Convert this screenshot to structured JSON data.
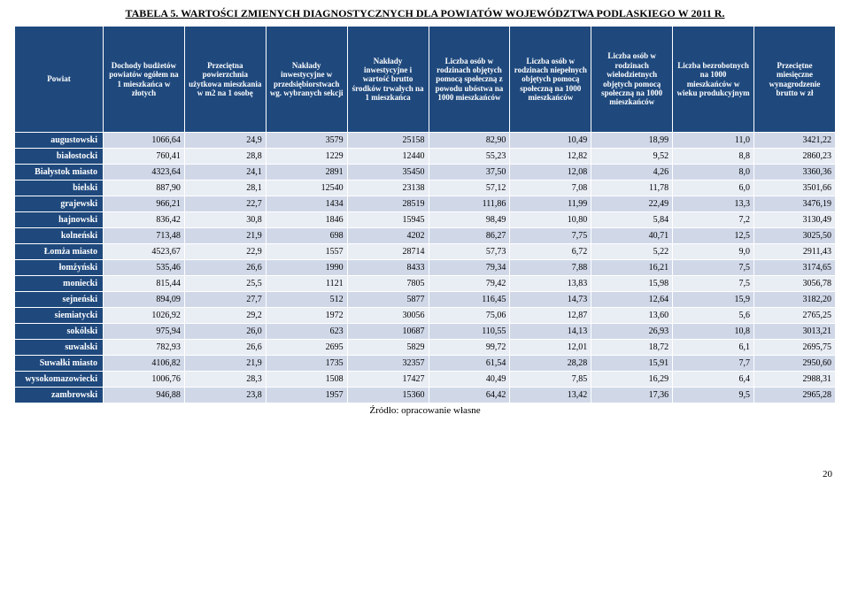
{
  "title": "TABELA 5. WARTOŚCI ZMIENYCH DIAGNOSTYCZNYCH DLA POWIATÓW WOJEWÓDZTWA PODLASKIEGO W 2011 R.",
  "source_note": "Źródło: opracowanie własne",
  "page_number": "20",
  "header_bg": "#1f497d",
  "header_fg": "#ffffff",
  "row_odd_bg": "#d0d8e8",
  "row_even_bg": "#e9edf4",
  "columns": [
    "Powiat",
    "Dochody budżetów powiatów ogółem na 1 mieszkańca w złotych",
    "Przeciętna powierzchnia użytkowa mieszkania w m2 na 1 osobę",
    "Nakłady inwestycyjne w przedsiębiorstwach wg. wybranych sekcji",
    "Nakłady inwestycyjne i wartość brutto środków trwałych na 1 mieszkańca",
    "Liczba osób w rodzinach objętych pomocą społeczną z powodu ubóstwa na 1000 mieszkańców",
    "Liczba osób w rodzinach niepełnych objętych pomocą społeczną na 1000 mieszkańców",
    "Liczba osób w rodzinach wielodzietnych objętych pomocą społeczną na 1000 mieszkańców",
    "Liczba bezrobotnych na 1000 mieszkańców w wieku produkcyjnym",
    "Przeciętne miesięczne wynagrodzenie brutto w zł"
  ],
  "rows": [
    {
      "label": "augustowski",
      "cells": [
        "1066,64",
        "24,9",
        "3579",
        "25158",
        "82,90",
        "10,49",
        "18,99",
        "11,0",
        "3421,22"
      ]
    },
    {
      "label": "białostocki",
      "cells": [
        "760,41",
        "28,8",
        "1229",
        "12440",
        "55,23",
        "12,82",
        "9,52",
        "8,8",
        "2860,23"
      ]
    },
    {
      "label": "Białystok miasto",
      "cells": [
        "4323,64",
        "24,1",
        "2891",
        "35450",
        "37,50",
        "12,08",
        "4,26",
        "8,0",
        "3360,36"
      ]
    },
    {
      "label": "bielski",
      "cells": [
        "887,90",
        "28,1",
        "12540",
        "23138",
        "57,12",
        "7,08",
        "11,78",
        "6,0",
        "3501,66"
      ]
    },
    {
      "label": "grajewski",
      "cells": [
        "966,21",
        "22,7",
        "1434",
        "28519",
        "111,86",
        "11,99",
        "22,49",
        "13,3",
        "3476,19"
      ]
    },
    {
      "label": "hajnowski",
      "cells": [
        "836,42",
        "30,8",
        "1846",
        "15945",
        "98,49",
        "10,80",
        "5,84",
        "7,2",
        "3130,49"
      ]
    },
    {
      "label": "kolneński",
      "cells": [
        "713,48",
        "21,9",
        "698",
        "4202",
        "86,27",
        "7,75",
        "40,71",
        "12,5",
        "3025,50"
      ]
    },
    {
      "label": "Łomża miasto",
      "cells": [
        "4523,67",
        "22,9",
        "1557",
        "28714",
        "57,73",
        "6,72",
        "5,22",
        "9,0",
        "2911,43"
      ]
    },
    {
      "label": "łomżyński",
      "cells": [
        "535,46",
        "26,6",
        "1990",
        "8433",
        "79,34",
        "7,88",
        "16,21",
        "7,5",
        "3174,65"
      ]
    },
    {
      "label": "moniecki",
      "cells": [
        "815,44",
        "25,5",
        "1121",
        "7805",
        "79,42",
        "13,83",
        "15,98",
        "7,5",
        "3056,78"
      ]
    },
    {
      "label": "sejneński",
      "cells": [
        "894,09",
        "27,7",
        "512",
        "5877",
        "116,45",
        "14,73",
        "12,64",
        "15,9",
        "3182,20"
      ]
    },
    {
      "label": "siemiatycki",
      "cells": [
        "1026,92",
        "29,2",
        "1972",
        "30056",
        "75,06",
        "12,87",
        "13,60",
        "5,6",
        "2765,25"
      ]
    },
    {
      "label": "sokólski",
      "cells": [
        "975,94",
        "26,0",
        "623",
        "10687",
        "110,55",
        "14,13",
        "26,93",
        "10,8",
        "3013,21"
      ]
    },
    {
      "label": "suwalski",
      "cells": [
        "782,93",
        "26,6",
        "2695",
        "5829",
        "99,72",
        "12,01",
        "18,72",
        "6,1",
        "2695,75"
      ]
    },
    {
      "label": "Suwałki miasto",
      "cells": [
        "4106,82",
        "21,9",
        "1735",
        "32357",
        "61,54",
        "28,28",
        "15,91",
        "7,7",
        "2950,60"
      ]
    },
    {
      "label": "wysokomazowiecki",
      "cells": [
        "1006,76",
        "28,3",
        "1508",
        "17427",
        "40,49",
        "7,85",
        "16,29",
        "6,4",
        "2988,31"
      ]
    },
    {
      "label": "zambrowski",
      "cells": [
        "946,88",
        "23,8",
        "1957",
        "15360",
        "64,42",
        "13,42",
        "17,36",
        "9,5",
        "2965,28"
      ]
    }
  ]
}
